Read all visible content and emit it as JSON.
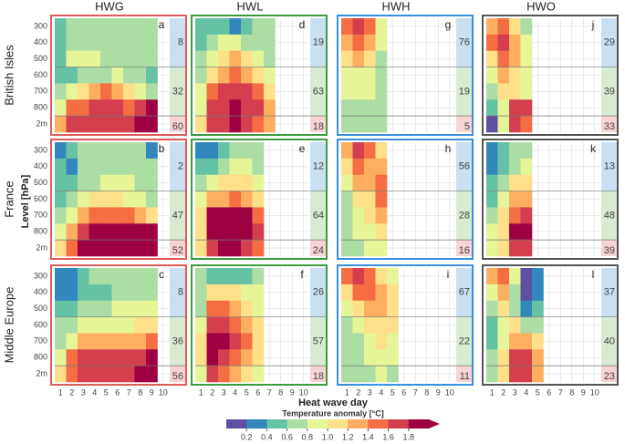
{
  "chart_data": {
    "type": "heatmap",
    "columns": [
      "HWG",
      "HWL",
      "HWH",
      "HWO"
    ],
    "column_colors": [
      "#e05a5a",
      "#3f9b3f",
      "#3b8fe0",
      "#555555"
    ],
    "rows": [
      "British Isles",
      "France",
      "Middle Europe"
    ],
    "ylabel": "Level [hPa]",
    "xlabel": "Heat wave day",
    "levels": [
      "300",
      "400",
      "500",
      "600",
      "700",
      "800",
      "2m"
    ],
    "x": [
      1,
      2,
      3,
      4,
      5,
      6,
      7,
      8,
      9,
      10
    ],
    "xlim": [
      0.5,
      10.5
    ],
    "side_colors": [
      "#c9e0f3",
      "#d8ebd2",
      "#f7d3d3"
    ],
    "panels": [
      {
        "letter": "a",
        "side": [
          8,
          32,
          60
        ],
        "z": [
          [
            0.5,
            0.7,
            0.7,
            0.7,
            0.7,
            0.7,
            0.7,
            0.7,
            0.7,
            null
          ],
          [
            0.5,
            0.7,
            0.7,
            0.7,
            0.7,
            0.7,
            0.7,
            0.7,
            0.7,
            null
          ],
          [
            0.5,
            0.9,
            0.9,
            0.9,
            0.7,
            0.7,
            0.7,
            0.7,
            0.7,
            null
          ],
          [
            0.5,
            0.5,
            0.7,
            0.7,
            0.7,
            0.9,
            0.7,
            0.7,
            0.5,
            null
          ],
          [
            0.7,
            0.9,
            1.1,
            1.3,
            1.5,
            1.3,
            1.1,
            0.9,
            0.7,
            null
          ],
          [
            0.9,
            1.5,
            1.5,
            1.7,
            1.7,
            1.7,
            1.5,
            1.7,
            1.9,
            null
          ],
          [
            1.3,
            1.7,
            1.7,
            1.7,
            1.7,
            1.7,
            1.7,
            1.9,
            1.9,
            null
          ]
        ]
      },
      {
        "letter": "d",
        "side": [
          19,
          63,
          18
        ],
        "z": [
          [
            0.5,
            0.5,
            0.5,
            0.3,
            0.5,
            0.7,
            0.7,
            null,
            null,
            null
          ],
          [
            0.5,
            0.7,
            0.9,
            0.9,
            0.7,
            0.7,
            0.7,
            null,
            null,
            null
          ],
          [
            0.7,
            0.9,
            1.1,
            1.3,
            1.1,
            0.9,
            0.7,
            null,
            null,
            null
          ],
          [
            0.7,
            1.1,
            1.3,
            1.5,
            1.3,
            1.1,
            0.9,
            null,
            null,
            null
          ],
          [
            0.9,
            1.5,
            1.7,
            1.7,
            1.7,
            1.5,
            1.1,
            null,
            null,
            null
          ],
          [
            0.9,
            1.7,
            1.7,
            1.9,
            1.7,
            1.7,
            1.3,
            null,
            null,
            null
          ],
          [
            1.1,
            1.7,
            1.7,
            1.9,
            1.7,
            1.5,
            1.3,
            null,
            null,
            null
          ]
        ]
      },
      {
        "letter": "g",
        "side": [
          76,
          19,
          5
        ],
        "z": [
          [
            1.5,
            1.7,
            1.5,
            0.9,
            null,
            null,
            null,
            null,
            null,
            null
          ],
          [
            1.3,
            1.5,
            1.3,
            0.9,
            null,
            null,
            null,
            null,
            null,
            null
          ],
          [
            1.1,
            1.3,
            1.1,
            0.7,
            null,
            null,
            null,
            null,
            null,
            null
          ],
          [
            0.9,
            0.9,
            0.9,
            0.7,
            null,
            null,
            null,
            null,
            null,
            null
          ],
          [
            0.9,
            0.9,
            0.9,
            0.7,
            null,
            null,
            null,
            null,
            null,
            null
          ],
          [
            0.7,
            0.7,
            0.7,
            0.7,
            null,
            null,
            null,
            null,
            null,
            null
          ],
          [
            0.7,
            0.7,
            0.7,
            0.7,
            null,
            null,
            null,
            null,
            null,
            null
          ]
        ]
      },
      {
        "letter": "j",
        "side": [
          29,
          39,
          33
        ],
        "z": [
          [
            1.3,
            1.5,
            1.1,
            0.7,
            null,
            null,
            null,
            null,
            null,
            null
          ],
          [
            1.5,
            1.7,
            1.3,
            0.9,
            null,
            null,
            null,
            null,
            null,
            null
          ],
          [
            1.1,
            1.5,
            1.3,
            0.9,
            null,
            null,
            null,
            null,
            null,
            null
          ],
          [
            0.9,
            1.3,
            1.1,
            0.9,
            null,
            null,
            null,
            null,
            null,
            null
          ],
          [
            0.7,
            1.1,
            1.1,
            0.9,
            null,
            null,
            null,
            null,
            null,
            null
          ],
          [
            0.5,
            0.9,
            1.7,
            1.7,
            null,
            null,
            null,
            null,
            null,
            null
          ],
          [
            0.1,
            0.9,
            1.7,
            1.5,
            null,
            null,
            null,
            null,
            null,
            null
          ]
        ]
      },
      {
        "letter": "b",
        "side": [
          2,
          47,
          52
        ],
        "z": [
          [
            0.3,
            0.5,
            0.7,
            0.7,
            0.7,
            0.7,
            0.7,
            0.7,
            0.3,
            null
          ],
          [
            0.5,
            0.3,
            0.7,
            0.7,
            0.7,
            0.7,
            0.7,
            0.7,
            0.7,
            null
          ],
          [
            0.5,
            0.5,
            0.7,
            0.7,
            0.9,
            0.9,
            0.9,
            0.7,
            0.7,
            null
          ],
          [
            0.5,
            0.7,
            0.9,
            1.1,
            1.1,
            1.1,
            0.9,
            0.9,
            0.7,
            null
          ],
          [
            0.7,
            0.9,
            1.3,
            1.5,
            1.5,
            1.5,
            1.5,
            1.3,
            1.1,
            null
          ],
          [
            0.9,
            1.3,
            1.7,
            1.9,
            1.9,
            1.9,
            1.9,
            1.9,
            1.9,
            null
          ],
          [
            1.1,
            1.5,
            1.9,
            1.9,
            1.9,
            1.9,
            1.9,
            1.9,
            1.9,
            null
          ]
        ]
      },
      {
        "letter": "e",
        "side": [
          12,
          64,
          24
        ],
        "z": [
          [
            0.3,
            0.3,
            0.5,
            0.7,
            0.7,
            0.7,
            null,
            null,
            null,
            null
          ],
          [
            0.5,
            0.5,
            0.7,
            0.9,
            0.9,
            0.7,
            null,
            null,
            null,
            null
          ],
          [
            0.7,
            0.9,
            1.1,
            1.1,
            1.1,
            0.9,
            null,
            null,
            null,
            null
          ],
          [
            0.9,
            1.3,
            1.3,
            1.5,
            1.3,
            1.1,
            null,
            null,
            null,
            null
          ],
          [
            1.1,
            1.9,
            1.9,
            1.9,
            1.9,
            1.5,
            null,
            null,
            null,
            null
          ],
          [
            1.1,
            1.9,
            1.9,
            1.9,
            1.9,
            1.7,
            null,
            null,
            null,
            null
          ],
          [
            1.1,
            1.7,
            1.9,
            1.9,
            1.7,
            1.5,
            null,
            null,
            null,
            null
          ]
        ]
      },
      {
        "letter": "h",
        "side": [
          56,
          28,
          16
        ],
        "z": [
          [
            1.3,
            1.7,
            1.5,
            1.1,
            null,
            null,
            null,
            null,
            null,
            null
          ],
          [
            1.1,
            1.5,
            1.3,
            1.3,
            null,
            null,
            null,
            null,
            null,
            null
          ],
          [
            0.9,
            1.3,
            1.3,
            1.5,
            null,
            null,
            null,
            null,
            null,
            null
          ],
          [
            0.7,
            1.1,
            1.1,
            1.5,
            null,
            null,
            null,
            null,
            null,
            null
          ],
          [
            0.7,
            0.9,
            1.1,
            1.3,
            null,
            null,
            null,
            null,
            null,
            null
          ],
          [
            0.7,
            0.9,
            0.9,
            1.1,
            null,
            null,
            null,
            null,
            null,
            null
          ],
          [
            0.7,
            0.7,
            0.9,
            0.9,
            null,
            null,
            null,
            null,
            null,
            null
          ]
        ]
      },
      {
        "letter": "k",
        "side": [
          13,
          48,
          39
        ],
        "z": [
          [
            0.3,
            0.5,
            0.7,
            0.7,
            null,
            null,
            null,
            null,
            null,
            null
          ],
          [
            0.3,
            0.5,
            0.7,
            0.9,
            null,
            null,
            null,
            null,
            null,
            null
          ],
          [
            0.5,
            0.7,
            1.1,
            1.1,
            null,
            null,
            null,
            null,
            null,
            null
          ],
          [
            0.5,
            0.9,
            1.3,
            1.3,
            null,
            null,
            null,
            null,
            null,
            null
          ],
          [
            0.7,
            1.1,
            1.5,
            1.7,
            null,
            null,
            null,
            null,
            null,
            null
          ],
          [
            0.9,
            1.1,
            1.9,
            1.9,
            null,
            null,
            null,
            null,
            null,
            null
          ],
          [
            0.9,
            1.1,
            1.7,
            1.7,
            null,
            null,
            null,
            null,
            null,
            null
          ]
        ]
      },
      {
        "letter": "c",
        "side": [
          8,
          36,
          56
        ],
        "z": [
          [
            0.3,
            0.3,
            0.5,
            0.7,
            0.7,
            0.7,
            0.7,
            0.7,
            0.7,
            null
          ],
          [
            0.3,
            0.3,
            0.5,
            0.5,
            0.5,
            0.7,
            0.7,
            0.7,
            0.7,
            null
          ],
          [
            0.5,
            0.5,
            0.7,
            0.7,
            0.7,
            0.9,
            0.9,
            0.9,
            0.9,
            null
          ],
          [
            0.7,
            0.7,
            0.9,
            0.9,
            0.9,
            0.9,
            0.9,
            1.1,
            1.1,
            null
          ],
          [
            0.7,
            0.9,
            1.3,
            1.3,
            1.3,
            1.3,
            1.3,
            1.3,
            1.5,
            null
          ],
          [
            0.9,
            1.5,
            1.7,
            1.7,
            1.7,
            1.7,
            1.7,
            1.7,
            1.9,
            null
          ],
          [
            1.1,
            1.5,
            1.7,
            1.7,
            1.7,
            1.7,
            1.7,
            1.9,
            1.9,
            null
          ]
        ]
      },
      {
        "letter": "f",
        "side": [
          26,
          57,
          18
        ],
        "z": [
          [
            0.7,
            0.5,
            0.5,
            0.5,
            0.5,
            0.7,
            null,
            null,
            null,
            null
          ],
          [
            0.7,
            1.1,
            1.1,
            1.1,
            0.9,
            0.9,
            null,
            null,
            null,
            null
          ],
          [
            0.7,
            1.5,
            1.5,
            1.3,
            1.1,
            0.9,
            null,
            null,
            null,
            null
          ],
          [
            0.9,
            1.7,
            1.7,
            1.5,
            1.3,
            1.1,
            null,
            null,
            null,
            null
          ],
          [
            1.1,
            1.9,
            1.9,
            1.7,
            1.5,
            1.1,
            null,
            null,
            null,
            null
          ],
          [
            1.1,
            1.9,
            1.7,
            1.5,
            1.3,
            1.1,
            null,
            null,
            null,
            null
          ],
          [
            0.9,
            1.7,
            1.5,
            1.3,
            1.1,
            0.9,
            null,
            null,
            null,
            null
          ]
        ]
      },
      {
        "letter": "i",
        "side": [
          67,
          22,
          11
        ],
        "z": [
          [
            1.5,
            1.7,
            1.5,
            1.1,
            0.9,
            null,
            null,
            null,
            null,
            null
          ],
          [
            1.1,
            1.5,
            1.5,
            1.3,
            1.1,
            null,
            null,
            null,
            null,
            null
          ],
          [
            0.9,
            1.1,
            1.3,
            1.3,
            1.1,
            null,
            null,
            null,
            null,
            null
          ],
          [
            0.7,
            0.9,
            1.1,
            1.1,
            1.1,
            null,
            null,
            null,
            null,
            null
          ],
          [
            0.7,
            0.7,
            0.9,
            1.1,
            0.9,
            null,
            null,
            null,
            null,
            null
          ],
          [
            0.7,
            0.7,
            0.9,
            0.9,
            0.9,
            null,
            null,
            null,
            null,
            null
          ],
          [
            0.7,
            0.7,
            0.7,
            0.9,
            0.7,
            null,
            null,
            null,
            null,
            null
          ]
        ]
      },
      {
        "letter": "l",
        "side": [
          37,
          40,
          23
        ],
        "z": [
          [
            1.3,
            1.5,
            0.9,
            0.1,
            0.3,
            null,
            null,
            null,
            null,
            null
          ],
          [
            0.9,
            1.3,
            0.7,
            0.1,
            0.3,
            null,
            null,
            null,
            null,
            null
          ],
          [
            0.7,
            1.1,
            0.7,
            0.3,
            0.5,
            null,
            null,
            null,
            null,
            null
          ],
          [
            0.5,
            0.9,
            1.1,
            0.7,
            0.7,
            null,
            null,
            null,
            null,
            null
          ],
          [
            0.5,
            0.9,
            1.3,
            1.3,
            1.1,
            null,
            null,
            null,
            null,
            null
          ],
          [
            0.7,
            1.1,
            1.7,
            1.7,
            1.3,
            null,
            null,
            null,
            null,
            null
          ],
          [
            0.7,
            1.1,
            1.7,
            1.7,
            1.3,
            null,
            null,
            null,
            null,
            null
          ]
        ]
      }
    ],
    "colorbar": {
      "title": "Temperature anomaly [°C]",
      "lim": [
        0,
        2
      ],
      "colors": [
        "#5e4fa2",
        "#3288bd",
        "#66c2a5",
        "#abdda4",
        "#e6f598",
        "#fee08b",
        "#fdae61",
        "#f46d43",
        "#d53e4f",
        "#9e0142"
      ],
      "ticks": [
        0.2,
        0.4,
        0.6,
        0.8,
        {
          "value": 1,
          "label": "1.0"
        },
        1.2,
        1.4,
        1.6,
        1.8
      ]
    }
  }
}
